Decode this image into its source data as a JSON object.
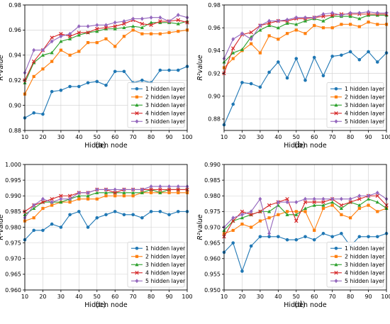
{
  "chart_data": [
    {
      "type": "line",
      "caption": "(a)",
      "xlabel": "Hidden node",
      "ylabel": "R²value",
      "xlim": [
        10,
        100
      ],
      "ylim": [
        0.88,
        0.98
      ],
      "x_ticks": [
        10,
        20,
        30,
        40,
        50,
        60,
        70,
        80,
        90,
        100
      ],
      "y_ticks": [
        0.88,
        0.9,
        0.92,
        0.94,
        0.96,
        0.98
      ],
      "y_tick_labels": [
        "0.88",
        "0.90",
        "0.92",
        "0.94",
        "0.96",
        "0.98"
      ],
      "grid": true,
      "legend_position": "lower-right",
      "x": [
        10,
        15,
        20,
        25,
        30,
        35,
        40,
        45,
        50,
        55,
        60,
        65,
        70,
        75,
        80,
        85,
        90,
        95,
        100
      ],
      "series": [
        {
          "name": "1 hidden layer",
          "values": [
            0.89,
            0.894,
            0.893,
            0.911,
            0.912,
            0.915,
            0.915,
            0.918,
            0.919,
            0.916,
            0.927,
            0.927,
            0.918,
            0.92,
            0.918,
            0.928,
            0.928,
            0.928,
            0.931
          ]
        },
        {
          "name": "2 hidden layer",
          "values": [
            0.909,
            0.923,
            0.929,
            0.935,
            0.944,
            0.94,
            0.943,
            0.95,
            0.95,
            0.953,
            0.947,
            0.955,
            0.96,
            0.957,
            0.957,
            0.957,
            0.958,
            0.959,
            0.96
          ]
        },
        {
          "name": "3 hidden layer",
          "values": [
            0.918,
            0.934,
            0.94,
            0.942,
            0.951,
            0.953,
            0.956,
            0.958,
            0.959,
            0.961,
            0.961,
            0.962,
            0.963,
            0.962,
            0.966,
            0.966,
            0.966,
            0.965,
            0.967
          ]
        },
        {
          "name": "4 hidden layer",
          "values": [
            0.92,
            0.935,
            0.944,
            0.954,
            0.957,
            0.955,
            0.958,
            0.958,
            0.961,
            0.962,
            0.963,
            0.965,
            0.968,
            0.965,
            0.964,
            0.967,
            0.967,
            0.968,
            0.966
          ]
        },
        {
          "name": "5 hidden layer",
          "values": [
            0.926,
            0.944,
            0.944,
            0.951,
            0.955,
            0.957,
            0.963,
            0.963,
            0.964,
            0.964,
            0.966,
            0.967,
            0.969,
            0.969,
            0.97,
            0.97,
            0.967,
            0.972,
            0.97
          ]
        }
      ]
    },
    {
      "type": "line",
      "caption": "(b)",
      "xlabel": "Hidden node",
      "ylabel": "R²value",
      "xlim": [
        10,
        100
      ],
      "ylim": [
        0.87,
        0.98
      ],
      "x_ticks": [
        10,
        20,
        30,
        40,
        50,
        60,
        70,
        80,
        90,
        100
      ],
      "y_ticks": [
        0.88,
        0.9,
        0.92,
        0.94,
        0.96,
        0.98
      ],
      "y_tick_labels": [
        "0.88",
        "0.90",
        "0.92",
        "0.94",
        "0.96",
        "0.98"
      ],
      "grid": true,
      "legend_position": "lower-right",
      "x": [
        10,
        15,
        20,
        25,
        30,
        35,
        40,
        45,
        50,
        55,
        60,
        65,
        70,
        75,
        80,
        85,
        90,
        95,
        100
      ],
      "series": [
        {
          "name": "1 hidden layer",
          "values": [
            0.875,
            0.893,
            0.912,
            0.911,
            0.908,
            0.921,
            0.93,
            0.916,
            0.933,
            0.914,
            0.934,
            0.918,
            0.935,
            0.936,
            0.939,
            0.932,
            0.939,
            0.93,
            0.938
          ]
        },
        {
          "name": "2 hidden layer",
          "values": [
            0.925,
            0.933,
            0.94,
            0.946,
            0.938,
            0.953,
            0.95,
            0.955,
            0.958,
            0.955,
            0.962,
            0.96,
            0.96,
            0.963,
            0.963,
            0.961,
            0.965,
            0.963,
            0.963
          ]
        },
        {
          "name": "3 hidden layer",
          "values": [
            0.93,
            0.938,
            0.941,
            0.952,
            0.958,
            0.962,
            0.96,
            0.964,
            0.963,
            0.966,
            0.968,
            0.966,
            0.97,
            0.97,
            0.97,
            0.968,
            0.971,
            0.971,
            0.971
          ]
        },
        {
          "name": "4 hidden layer",
          "values": [
            0.92,
            0.942,
            0.954,
            0.956,
            0.962,
            0.964,
            0.966,
            0.966,
            0.968,
            0.968,
            0.969,
            0.97,
            0.971,
            0.972,
            0.972,
            0.972,
            0.972,
            0.972,
            0.972
          ]
        },
        {
          "name": "5 hidden layer",
          "values": [
            0.933,
            0.95,
            0.955,
            0.95,
            0.962,
            0.966,
            0.966,
            0.967,
            0.969,
            0.969,
            0.969,
            0.972,
            0.973,
            0.971,
            0.973,
            0.973,
            0.974,
            0.973,
            0.973
          ]
        }
      ]
    },
    {
      "type": "line",
      "caption": "(c)",
      "xlabel": "Hidden node",
      "ylabel": "R²value",
      "xlim": [
        10,
        100
      ],
      "ylim": [
        0.96,
        1.0
      ],
      "x_ticks": [
        10,
        20,
        30,
        40,
        50,
        60,
        70,
        80,
        90,
        100
      ],
      "y_ticks": [
        0.96,
        0.965,
        0.97,
        0.975,
        0.98,
        0.985,
        0.99,
        0.995,
        1.0
      ],
      "y_tick_labels": [
        "0.960",
        "0.965",
        "0.970",
        "0.975",
        "0.980",
        "0.985",
        "0.990",
        "0.995",
        "1.000"
      ],
      "grid": true,
      "legend_position": "lower-right",
      "x": [
        10,
        15,
        20,
        25,
        30,
        35,
        40,
        45,
        50,
        55,
        60,
        65,
        70,
        75,
        80,
        85,
        90,
        95,
        100
      ],
      "series": [
        {
          "name": "1 hidden layer",
          "values": [
            0.976,
            0.979,
            0.979,
            0.981,
            0.98,
            0.984,
            0.985,
            0.98,
            0.983,
            0.984,
            0.985,
            0.984,
            0.984,
            0.983,
            0.985,
            0.985,
            0.984,
            0.985,
            0.985
          ]
        },
        {
          "name": "2 hidden layer",
          "values": [
            0.982,
            0.983,
            0.986,
            0.987,
            0.988,
            0.988,
            0.989,
            0.989,
            0.989,
            0.99,
            0.99,
            0.99,
            0.99,
            0.991,
            0.991,
            0.991,
            0.991,
            0.991,
            0.991
          ]
        },
        {
          "name": "3 hidden layer",
          "values": [
            0.984,
            0.986,
            0.988,
            0.988,
            0.988,
            0.989,
            0.99,
            0.99,
            0.991,
            0.991,
            0.991,
            0.991,
            0.991,
            0.991,
            0.992,
            0.991,
            0.992,
            0.992,
            0.992
          ]
        },
        {
          "name": "4 hidden layer",
          "values": [
            0.985,
            0.987,
            0.988,
            0.989,
            0.99,
            0.99,
            0.991,
            0.991,
            0.992,
            0.992,
            0.991,
            0.992,
            0.992,
            0.992,
            0.992,
            0.992,
            0.992,
            0.992,
            0.992
          ]
        },
        {
          "name": "5 hidden layer",
          "values": [
            0.983,
            0.987,
            0.989,
            0.988,
            0.989,
            0.989,
            0.991,
            0.991,
            0.992,
            0.992,
            0.992,
            0.992,
            0.992,
            0.992,
            0.993,
            0.993,
            0.993,
            0.993,
            0.993
          ]
        }
      ]
    },
    {
      "type": "line",
      "caption": "(d)",
      "xlabel": "Hidden node",
      "ylabel": "R²value",
      "xlim": [
        10,
        100
      ],
      "ylim": [
        0.95,
        0.99
      ],
      "x_ticks": [
        10,
        20,
        30,
        40,
        50,
        60,
        70,
        80,
        90,
        100
      ],
      "y_ticks": [
        0.95,
        0.955,
        0.96,
        0.965,
        0.97,
        0.975,
        0.98,
        0.985,
        0.99
      ],
      "y_tick_labels": [
        "0.950",
        "0.955",
        "0.960",
        "0.965",
        "0.970",
        "0.975",
        "0.980",
        "0.985",
        "0.990"
      ],
      "grid": true,
      "legend_position": "lower-right",
      "x": [
        10,
        15,
        20,
        25,
        30,
        35,
        40,
        45,
        50,
        55,
        60,
        65,
        70,
        75,
        80,
        85,
        90,
        95,
        100
      ],
      "series": [
        {
          "name": "1 hidden layer",
          "values": [
            0.962,
            0.965,
            0.956,
            0.964,
            0.967,
            0.967,
            0.967,
            0.966,
            0.966,
            0.967,
            0.966,
            0.968,
            0.967,
            0.968,
            0.964,
            0.967,
            0.967,
            0.967,
            0.968
          ]
        },
        {
          "name": "2 hidden layer",
          "values": [
            0.968,
            0.969,
            0.971,
            0.97,
            0.972,
            0.973,
            0.974,
            0.975,
            0.975,
            0.975,
            0.969,
            0.976,
            0.977,
            0.974,
            0.973,
            0.976,
            0.977,
            0.975,
            0.976
          ]
        },
        {
          "name": "3 hidden layer",
          "values": [
            0.969,
            0.972,
            0.973,
            0.974,
            0.975,
            0.975,
            0.977,
            0.974,
            0.974,
            0.976,
            0.977,
            0.977,
            0.978,
            0.976,
            0.978,
            0.977,
            0.979,
            0.978,
            0.976
          ]
        },
        {
          "name": "4 hidden layer",
          "values": [
            0.967,
            0.972,
            0.975,
            0.974,
            0.975,
            0.977,
            0.978,
            0.979,
            0.972,
            0.978,
            0.978,
            0.978,
            0.979,
            0.977,
            0.978,
            0.979,
            0.98,
            0.98,
            0.977
          ]
        },
        {
          "name": "5 hidden layer",
          "values": [
            0.97,
            0.973,
            0.974,
            0.975,
            0.979,
            0.968,
            0.978,
            0.978,
            0.978,
            0.979,
            0.979,
            0.979,
            0.979,
            0.979,
            0.979,
            0.98,
            0.98,
            0.981,
            0.979
          ]
        }
      ]
    }
  ],
  "series_colors": [
    "#1f77b4",
    "#ff7f0e",
    "#2ca02c",
    "#d62728",
    "#9467bd"
  ],
  "series_markers": [
    "circle",
    "square",
    "triangle",
    "x",
    "diamond"
  ]
}
